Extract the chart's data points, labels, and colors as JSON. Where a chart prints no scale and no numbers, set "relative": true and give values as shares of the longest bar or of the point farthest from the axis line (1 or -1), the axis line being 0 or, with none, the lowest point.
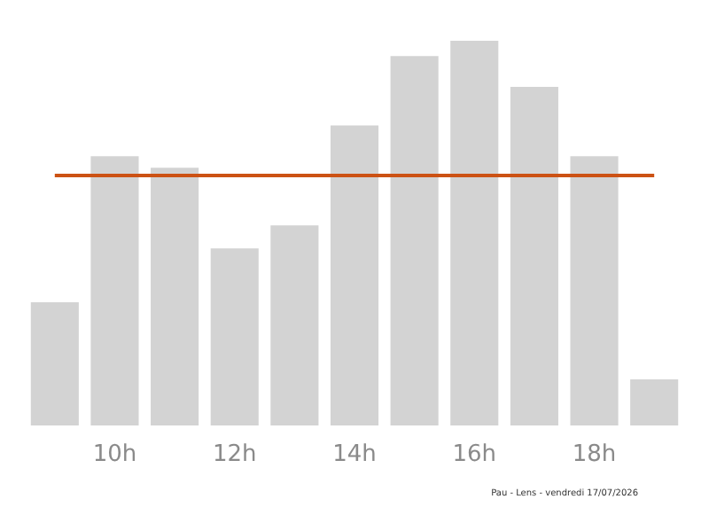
{
  "chart_data": {
    "type": "bar",
    "relative": true,
    "categories": [
      null,
      "10h",
      null,
      "12h",
      null,
      "14h",
      null,
      "16h",
      null,
      "18h",
      null
    ],
    "values": [
      0.32,
      0.7,
      0.67,
      0.46,
      0.52,
      0.78,
      0.96,
      1,
      0.88,
      0.7,
      0.12
    ],
    "color": "#d3d3d3",
    "ref_lines": [
      {
        "axis": "y",
        "value": 0.65,
        "color": "#cc5214"
      }
    ],
    "annotations": [
      "Pau - Lens - vendredi 17/07/2026"
    ]
  }
}
